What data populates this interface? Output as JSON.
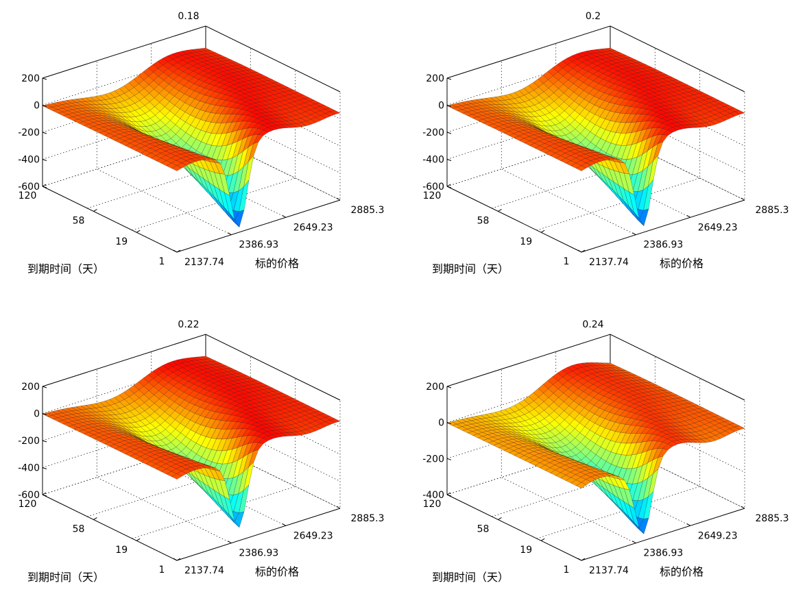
{
  "chart_data": [
    {
      "type": "surface",
      "title": "0.18",
      "xlabel": "标的价格",
      "ylabel": "到期时间（天）",
      "x_ticks": [
        "2137.74",
        "2386.93",
        "2649.23",
        "2885.3"
      ],
      "y_ticks": [
        "1",
        "19",
        "58",
        "120"
      ],
      "z_ticks": [
        "-600",
        "-400",
        "-200",
        "0",
        "200"
      ],
      "xlim": [
        2137.74,
        2885.3
      ],
      "ylim": [
        1,
        120
      ],
      "zlim": [
        -600,
        200
      ],
      "z_min_approx": -560,
      "z_max_approx": 150,
      "grid": true,
      "colormap": "jet"
    },
    {
      "type": "surface",
      "title": "0.2",
      "xlabel": "标的价格",
      "ylabel": "到期时间（天）",
      "x_ticks": [
        "2137.74",
        "2386.93",
        "2649.23",
        "2885.3"
      ],
      "y_ticks": [
        "1",
        "19",
        "58",
        "120"
      ],
      "z_ticks": [
        "-600",
        "-400",
        "-200",
        "0",
        "200"
      ],
      "xlim": [
        2137.74,
        2885.3
      ],
      "ylim": [
        1,
        120
      ],
      "zlim": [
        -600,
        200
      ],
      "z_min_approx": -550,
      "z_max_approx": 150,
      "grid": true,
      "colormap": "jet"
    },
    {
      "type": "surface",
      "title": "0.22",
      "xlabel": "标的价格",
      "ylabel": "到期时间（天）",
      "x_ticks": [
        "2137.74",
        "2386.93",
        "2649.23",
        "2885.3"
      ],
      "y_ticks": [
        "1",
        "19",
        "58",
        "120"
      ],
      "z_ticks": [
        "-600",
        "-400",
        "-200",
        "0",
        "200"
      ],
      "xlim": [
        2137.74,
        2885.3
      ],
      "ylim": [
        1,
        120
      ],
      "zlim": [
        -600,
        200
      ],
      "z_min_approx": -500,
      "z_max_approx": 150,
      "grid": true,
      "colormap": "jet"
    },
    {
      "type": "surface",
      "title": "0.24",
      "xlabel": "标的价格",
      "ylabel": "到期时间（天）",
      "x_ticks": [
        "2137.74",
        "2386.93",
        "2649.23",
        "2885.3"
      ],
      "y_ticks": [
        "1",
        "19",
        "58",
        "120"
      ],
      "z_ticks": [
        "-400",
        "-200",
        "0",
        "200"
      ],
      "xlim": [
        2137.74,
        2885.3
      ],
      "ylim": [
        1,
        120
      ],
      "zlim": [
        -400,
        200
      ],
      "z_min_approx": -360,
      "z_max_approx": 150,
      "grid": true,
      "colormap": "jet"
    }
  ]
}
